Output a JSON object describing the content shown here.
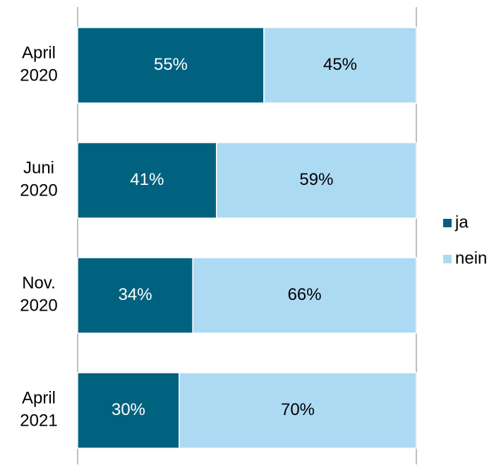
{
  "chart_data": {
    "type": "stacked_bar_horizontal",
    "categories": [
      "April 2020",
      "Juni 2020",
      "Nov. 2020",
      "April 2021"
    ],
    "series": [
      {
        "name": "ja",
        "color": "#00627f",
        "label_color": "#ffffff",
        "values": [
          55,
          41,
          34,
          30
        ],
        "value_labels": [
          "55%",
          "41%",
          "34%",
          "30%"
        ]
      },
      {
        "name": "nein",
        "color": "#addaf3",
        "label_color": "#000000",
        "values": [
          45,
          59,
          66,
          70
        ],
        "value_labels": [
          "45%",
          "59%",
          "66%",
          "70%"
        ]
      }
    ],
    "xlim": [
      0,
      100
    ],
    "legend": "right"
  }
}
